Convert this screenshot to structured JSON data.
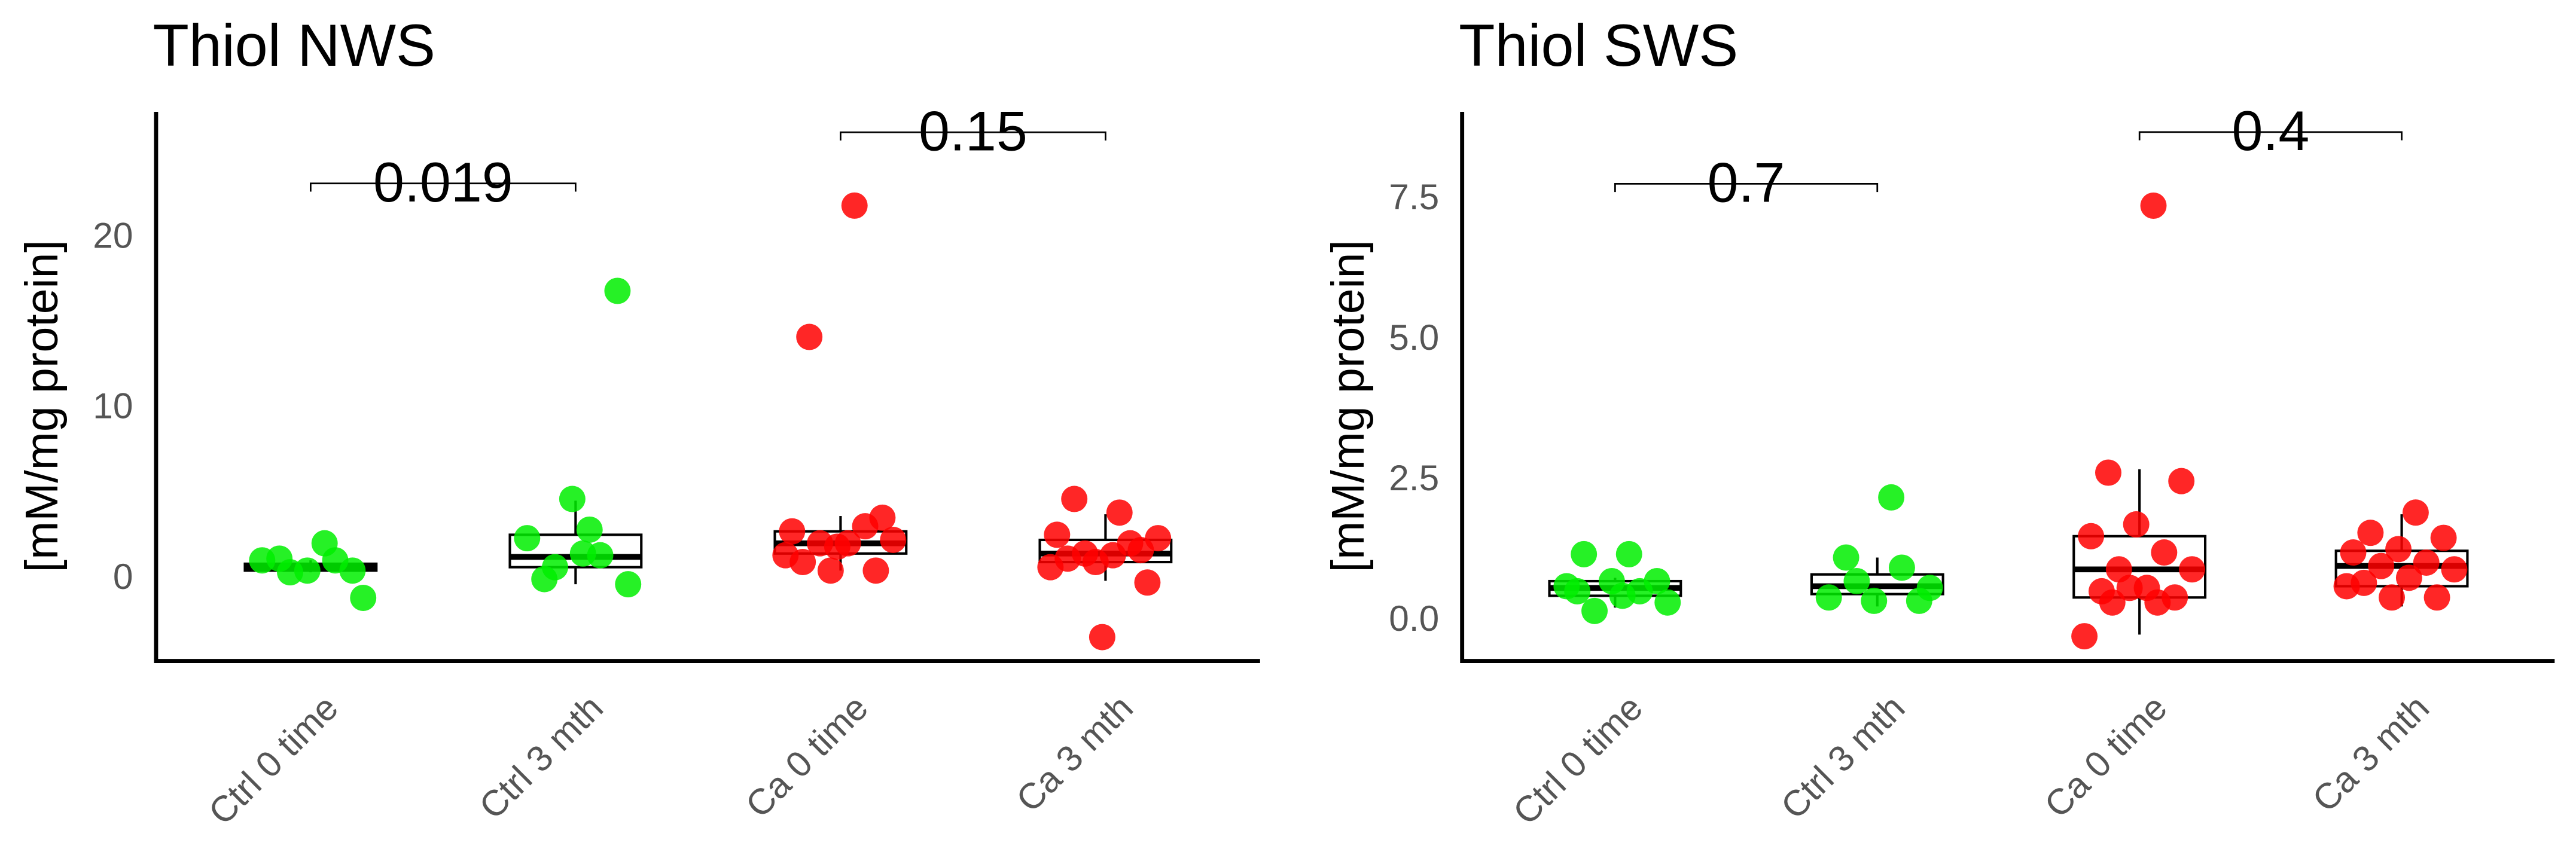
{
  "chart_data": [
    {
      "type": "box",
      "title": "Thiol NWS",
      "y_label": "[mM/mg protein]",
      "categories": [
        "Ctrl 0 time",
        "Ctrl 3 mth",
        "Ca 0 time",
        "Ca 3 mth"
      ],
      "colors": [
        "#00ee00",
        "#00ee00",
        "#ff0000",
        "#ff0000"
      ],
      "boxes": [
        {
          "min": 0.2,
          "q1": 0.3,
          "median": 0.5,
          "q3": 0.7,
          "max": 0.9
        },
        {
          "min": -0.5,
          "q1": 0.5,
          "median": 1.1,
          "q3": 2.4,
          "max": 4.4
        },
        {
          "min": 0.3,
          "q1": 1.3,
          "median": 1.9,
          "q3": 2.6,
          "max": 3.5
        },
        {
          "min": -0.3,
          "q1": 0.8,
          "median": 1.3,
          "q3": 2.1,
          "max": 3.6
        }
      ],
      "points": [
        [
          1.9,
          1.0,
          0.3,
          0.3,
          0.9,
          0.9,
          0.2,
          -1.3
        ],
        [
          2.7,
          -0.2,
          16.7,
          4.5,
          2.2,
          1.2,
          0.5,
          -0.5,
          1.3
        ],
        [
          21.7,
          14.0,
          3.4,
          1.7,
          2.6,
          2.9,
          1.9,
          2.1,
          1.9,
          0.8,
          0.3,
          0.3,
          1.2
        ],
        [
          3.7,
          4.5,
          -0.4,
          -3.6,
          2.4,
          1.9,
          1.3,
          2.2,
          1.2,
          1.0,
          1.5,
          0.8,
          0.5
        ]
      ],
      "annotations": [
        {
          "label": "0.019",
          "between": [
            0,
            1
          ],
          "y": 23.0
        },
        {
          "label": "0.15",
          "between": [
            2,
            3
          ],
          "y": 26.0
        }
      ],
      "ylim": [
        -5.0,
        27.2
      ],
      "yticks": [
        0,
        10,
        20
      ]
    },
    {
      "type": "box",
      "title": "Thiol SWS",
      "y_label": "[mM/mg protein]",
      "categories": [
        "Ctrl 0 time",
        "Ctrl 3 mth",
        "Ca 0 time",
        "Ca 3 mth"
      ],
      "colors": [
        "#00ee00",
        "#00ee00",
        "#ff0000",
        "#ff0000"
      ],
      "boxes": [
        {
          "min": 0.18,
          "q1": 0.39,
          "median": 0.53,
          "q3": 0.65,
          "max": 0.71
        },
        {
          "min": 0.2,
          "q1": 0.42,
          "median": 0.56,
          "q3": 0.77,
          "max": 1.07
        },
        {
          "min": -0.3,
          "q1": 0.36,
          "median": 0.86,
          "q3": 1.45,
          "max": 2.64
        },
        {
          "min": 0.2,
          "q1": 0.56,
          "median": 0.92,
          "q3": 1.19,
          "max": 1.84
        }
      ],
      "points": [
        [
          1.13,
          1.13,
          0.65,
          0.65,
          0.56,
          0.47,
          0.12,
          0.27,
          0.39,
          0.47
        ],
        [
          2.14,
          1.07,
          0.3,
          0.3,
          0.36,
          0.89,
          0.65,
          0.53
        ],
        [
          7.33,
          2.58,
          2.43,
          1.66,
          1.45,
          1.16,
          0.86,
          0.86,
          0.53,
          0.47,
          0.36,
          0.53,
          -0.33,
          0.27,
          0.27
        ],
        [
          1.87,
          1.51,
          1.42,
          1.22,
          1.16,
          0.98,
          0.92,
          0.86,
          0.71,
          0.62,
          0.36,
          0.36,
          0.56
        ]
      ],
      "annotations": [
        {
          "label": "0.7",
          "between": [
            0,
            1
          ],
          "y": 7.72
        },
        {
          "label": "0.4",
          "between": [
            2,
            3
          ],
          "y": 8.64
        }
      ],
      "ylim": [
        -0.77,
        9.0
      ],
      "yticks": [
        {
          "value": 0,
          "label": "0.0"
        },
        2.5,
        {
          "value": 5,
          "label": "5.0"
        },
        7.5
      ]
    }
  ]
}
